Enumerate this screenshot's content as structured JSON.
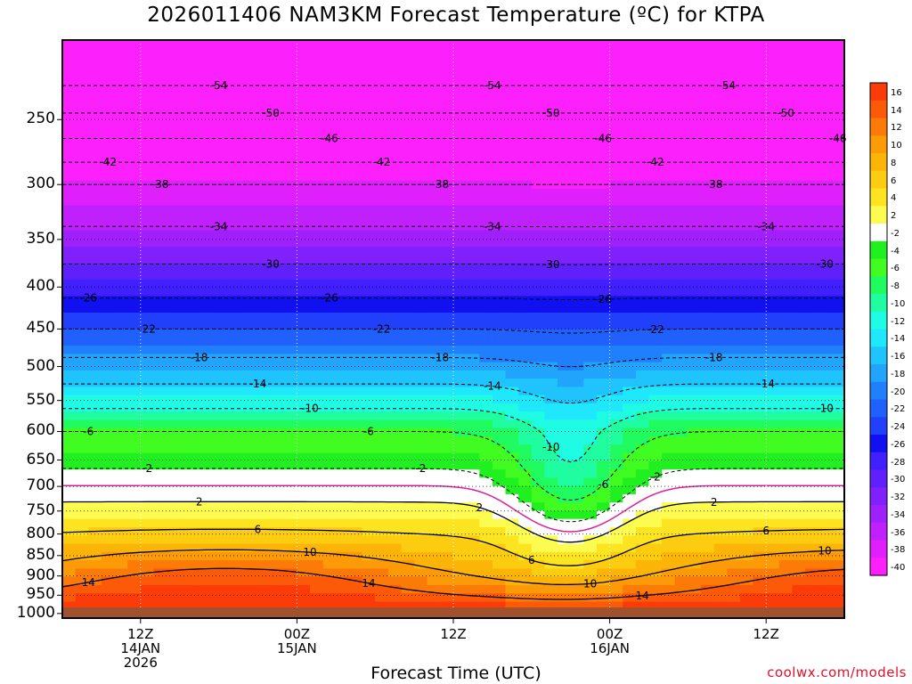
{
  "title": "2026011406 NAM3KM Forecast Temperature (ºC) for KTPA",
  "credit": "coolwx.com/models",
  "chart_data": {
    "type": "heatmap",
    "title": "2026011406 NAM3KM Forecast Temperature (ºC) for KTPA",
    "xlabel": "Forecast Time (UTC)",
    "ylabel": "",
    "y_ticks": [
      250,
      300,
      350,
      400,
      450,
      500,
      550,
      600,
      650,
      700,
      750,
      800,
      850,
      900,
      950,
      1000
    ],
    "y_tick_labels": [
      "250",
      "300",
      "350",
      "400",
      "450",
      "500",
      "550",
      "600",
      "650",
      "700",
      "750",
      "800",
      "850",
      "900",
      "950",
      "1000"
    ],
    "y_range_hpa": [
      200,
      1013
    ],
    "y_scale": "log-pressure, inverted",
    "x_range_hours": [
      6,
      66
    ],
    "x_ticks": [
      {
        "hour": 12,
        "label": [
          "12Z",
          "14JAN",
          "2026"
        ]
      },
      {
        "hour": 24,
        "label": [
          "00Z",
          "15JAN"
        ]
      },
      {
        "hour": 36,
        "label": [
          "12Z"
        ]
      },
      {
        "hour": 48,
        "label": [
          "00Z",
          "16JAN"
        ]
      },
      {
        "hour": 60,
        "label": [
          "12Z"
        ]
      }
    ],
    "grid": true,
    "colorbar_ticks": [
      16,
      14,
      12,
      10,
      8,
      6,
      4,
      2,
      -2,
      -4,
      -6,
      -8,
      -10,
      -12,
      -14,
      -16,
      -18,
      -20,
      -22,
      -24,
      -26,
      -28,
      -30,
      -32,
      -34,
      -36,
      -38,
      -40
    ],
    "colorbar_colors": [
      "#fc3c08",
      "#fc5a08",
      "#fc7a08",
      "#fc9a08",
      "#fcb408",
      "#fccc10",
      "#fce420",
      "#fcfc50",
      "#ffffff",
      "#20f020",
      "#40fc20",
      "#20fc60",
      "#20fca0",
      "#20fce4",
      "#20e8fc",
      "#20c4fc",
      "#20a4fc",
      "#2080fc",
      "#2060fc",
      "#2040fc",
      "#1010f0",
      "#4020fc",
      "#6020fc",
      "#8020fc",
      "#a020fc",
      "#c020fc",
      "#e020fc",
      "#fc20fc"
    ],
    "isotherms": [
      {
        "value": -54,
        "label": "-54"
      },
      {
        "value": -50,
        "label": "-50"
      },
      {
        "value": -46,
        "label": "-46"
      },
      {
        "value": -42,
        "label": "-42"
      },
      {
        "value": -38,
        "label": "-38"
      },
      {
        "value": -34,
        "label": "-34"
      },
      {
        "value": -30,
        "label": "-30"
      },
      {
        "value": -26,
        "label": "-26"
      },
      {
        "value": -22,
        "label": "-22"
      },
      {
        "value": -18,
        "label": "-18"
      },
      {
        "value": -14,
        "label": "-14"
      },
      {
        "value": -10,
        "label": "-10"
      },
      {
        "value": -6,
        "label": "-6"
      },
      {
        "value": -2,
        "label": "-2"
      },
      {
        "value": 2,
        "label": "2"
      },
      {
        "value": 6,
        "label": "6"
      },
      {
        "value": 10,
        "label": "10"
      },
      {
        "value": 14,
        "label": "14"
      }
    ],
    "freezing_line": {
      "value": 0,
      "color": "#e0209a"
    },
    "surface_fill_color": "#a0522d"
  }
}
